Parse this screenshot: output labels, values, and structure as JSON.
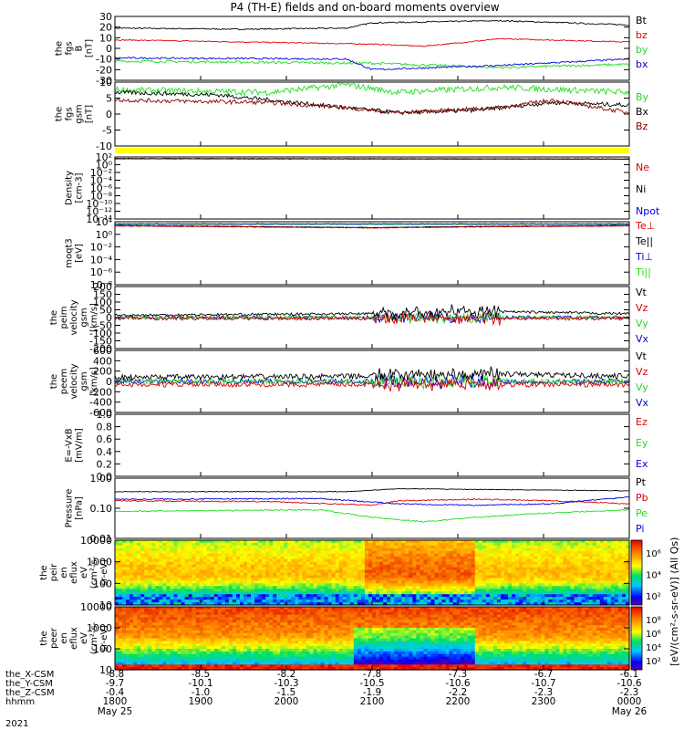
{
  "title": "P4 (TH-E) fields and on-board moments overview",
  "colors": {
    "black": "#000000",
    "red": "#dd0000",
    "blue": "#0000dd",
    "green": "#22dd22",
    "darkred": "#8b0000",
    "yellow": "#ffff00"
  },
  "chart_data": [
    {
      "type": "line",
      "ylabel": [
        "the",
        "fgs",
        "B",
        "[nT]"
      ],
      "yticks": [
        30,
        20,
        10,
        0,
        -10,
        -20,
        -30
      ],
      "ylim": [
        -30,
        30
      ],
      "legend": [
        {
          "name": "Bt",
          "color": "#000000"
        },
        {
          "name": "bz",
          "color": "#dd0000"
        },
        {
          "name": "by",
          "color": "#22dd22"
        },
        {
          "name": "bx",
          "color": "#0000dd"
        }
      ],
      "series": [
        {
          "name": "Bt",
          "color": "#000000",
          "base": 20,
          "noise": 0.6,
          "points": [
            [
              0,
              19
            ],
            [
              0.25,
              18
            ],
            [
              0.45,
              19
            ],
            [
              0.5,
              24
            ],
            [
              0.75,
              26
            ],
            [
              1,
              22
            ]
          ]
        },
        {
          "name": "bz",
          "color": "#dd0000",
          "base": 8,
          "noise": 0.5,
          "points": [
            [
              0,
              8
            ],
            [
              0.5,
              4
            ],
            [
              0.6,
              2
            ],
            [
              0.75,
              9
            ],
            [
              1,
              6
            ]
          ]
        },
        {
          "name": "by",
          "color": "#22dd22",
          "base": -12,
          "noise": 1.2,
          "points": [
            [
              0,
              -12
            ],
            [
              0.5,
              -14
            ],
            [
              0.75,
              -18
            ],
            [
              1,
              -15
            ]
          ]
        },
        {
          "name": "bx",
          "color": "#0000dd",
          "base": -10,
          "noise": 0.8,
          "points": [
            [
              0,
              -9
            ],
            [
              0.45,
              -10
            ],
            [
              0.5,
              -20
            ],
            [
              0.75,
              -16
            ],
            [
              1,
              -10
            ]
          ]
        }
      ]
    },
    {
      "type": "line",
      "ylabel": [
        "the",
        "fgs",
        "gsm",
        "[nT]"
      ],
      "yticks": [
        10,
        5,
        0,
        -5,
        -10
      ],
      "ylim": [
        -15,
        10
      ],
      "legend": [
        {
          "name": "By",
          "color": "#22dd22"
        },
        {
          "name": "Bx",
          "color": "#000000"
        },
        {
          "name": "Bz",
          "color": "#8b0000"
        }
      ],
      "series": [
        {
          "name": "By",
          "color": "#22dd22",
          "noise": 1.2,
          "points": [
            [
              0,
              7
            ],
            [
              0.3,
              6
            ],
            [
              0.45,
              9
            ],
            [
              0.55,
              6
            ],
            [
              0.75,
              8
            ],
            [
              1,
              6
            ]
          ]
        },
        {
          "name": "Bx",
          "color": "#000000",
          "noise": 0.8,
          "points": [
            [
              0,
              6
            ],
            [
              0.2,
              5
            ],
            [
              0.4,
              1
            ],
            [
              0.55,
              -2
            ],
            [
              0.7,
              -1
            ],
            [
              0.85,
              2
            ],
            [
              1,
              1
            ]
          ]
        },
        {
          "name": "Bz",
          "color": "#8b0000",
          "noise": 0.8,
          "points": [
            [
              0,
              3
            ],
            [
              0.3,
              2
            ],
            [
              0.45,
              0
            ],
            [
              0.55,
              -2
            ],
            [
              0.75,
              0
            ],
            [
              0.85,
              3
            ],
            [
              1,
              -2
            ]
          ]
        }
      ]
    },
    {
      "type": "line",
      "log": true,
      "ylabel": [
        "Density",
        "[cm-3]"
      ],
      "yticks": [
        "10²",
        "10⁰",
        "10⁻²",
        "10⁻⁴",
        "10⁻⁶",
        "10⁻⁸",
        "10⁻¹⁰",
        "10⁻¹²",
        "10⁻¹⁴"
      ],
      "ylim": [
        -14,
        2
      ],
      "legend": [
        {
          "name": "Ne",
          "color": "#dd0000"
        },
        {
          "name": "Ni",
          "color": "#000000"
        },
        {
          "name": "Npot",
          "color": "#0000dd"
        }
      ],
      "series": [
        {
          "name": "Ne",
          "color": "#dd0000",
          "noise": 0.05,
          "points": [
            [
              0,
              1.5
            ],
            [
              1,
              1.4
            ]
          ]
        },
        {
          "name": "Ni",
          "color": "#000000",
          "noise": 0.05,
          "points": [
            [
              0,
              1.6
            ],
            [
              1,
              1.5
            ]
          ]
        }
      ]
    },
    {
      "type": "line",
      "log": true,
      "ylabel": [
        "moqt3",
        "[eV]"
      ],
      "yticks": [
        "10⁴",
        "10⁰",
        "10⁻²",
        "10⁻⁴",
        "10⁻⁶",
        "10⁻⁸"
      ],
      "ylim": [
        -8,
        4
      ],
      "legend": [
        {
          "name": "Te⊥",
          "color": "#dd0000"
        },
        {
          "name": "Te||",
          "color": "#000000"
        },
        {
          "name": "Ti⊥",
          "color": "#0000dd"
        },
        {
          "name": "Ti||",
          "color": "#22dd22"
        }
      ],
      "series": [
        {
          "name": "Ti||",
          "color": "#22dd22",
          "noise": 0.05,
          "points": [
            [
              0,
              3.5
            ],
            [
              1,
              3.5
            ]
          ]
        },
        {
          "name": "Ti⊥",
          "color": "#0000dd",
          "noise": 0.05,
          "points": [
            [
              0,
              3.6
            ],
            [
              1,
              3.6
            ]
          ]
        },
        {
          "name": "Te||",
          "color": "#000000",
          "noise": 0.05,
          "points": [
            [
              0,
              3.3
            ],
            [
              0.5,
              2.9
            ],
            [
              0.7,
              3.1
            ],
            [
              1,
              3.3
            ]
          ]
        },
        {
          "name": "Te⊥",
          "color": "#dd0000",
          "noise": 0.05,
          "points": [
            [
              0,
              3.2
            ],
            [
              0.5,
              2.8
            ],
            [
              0.7,
              3.0
            ],
            [
              1,
              3.2
            ]
          ]
        }
      ]
    },
    {
      "type": "line",
      "ylabel": [
        "the",
        "peim",
        "velocity",
        "gsm",
        "[km/s]"
      ],
      "yticks": [
        200,
        150,
        100,
        50,
        0,
        -50,
        -100,
        -150,
        -200
      ],
      "ylim": [
        -200,
        200
      ],
      "legend": [
        {
          "name": "Vt",
          "color": "#000000"
        },
        {
          "name": "Vz",
          "color": "#dd0000"
        },
        {
          "name": "Vy",
          "color": "#22dd22"
        },
        {
          "name": "Vx",
          "color": "#0000dd"
        }
      ],
      "series": [
        {
          "name": "Vx",
          "color": "#0000dd",
          "noise": 12,
          "burst": 35,
          "points": [
            [
              0,
              0
            ],
            [
              1,
              0
            ]
          ]
        },
        {
          "name": "Vy",
          "color": "#22dd22",
          "noise": 12,
          "burst": 35,
          "points": [
            [
              0,
              0
            ],
            [
              1,
              0
            ]
          ]
        },
        {
          "name": "Vz",
          "color": "#dd0000",
          "noise": 12,
          "burst": 40,
          "points": [
            [
              0,
              -5
            ],
            [
              1,
              -5
            ]
          ]
        },
        {
          "name": "Vt",
          "color": "#000000",
          "noise": 8,
          "burst": 45,
          "points": [
            [
              0,
              15
            ],
            [
              0.5,
              25
            ],
            [
              0.7,
              40
            ],
            [
              1,
              25
            ]
          ]
        }
      ]
    },
    {
      "type": "line",
      "ylabel": [
        "the",
        "peem",
        "velocity",
        "gsm",
        "[km/s]"
      ],
      "yticks": [
        600,
        400,
        200,
        0,
        -200,
        -400,
        -600
      ],
      "ylim": [
        -600,
        600
      ],
      "legend": [
        {
          "name": "Vt",
          "color": "#000000"
        },
        {
          "name": "Vz",
          "color": "#dd0000"
        },
        {
          "name": "Vy",
          "color": "#22dd22"
        },
        {
          "name": "Vx",
          "color": "#0000dd"
        }
      ],
      "series": [
        {
          "name": "Vx",
          "color": "#0000dd",
          "noise": 50,
          "burst": 120,
          "points": [
            [
              0,
              0
            ],
            [
              1,
              0
            ]
          ]
        },
        {
          "name": "Vy",
          "color": "#22dd22",
          "noise": 50,
          "burst": 120,
          "points": [
            [
              0,
              0
            ],
            [
              1,
              0
            ]
          ]
        },
        {
          "name": "Vt",
          "color": "#000000",
          "noise": 50,
          "burst": 120,
          "points": [
            [
              0,
              80
            ],
            [
              0.5,
              100
            ],
            [
              0.7,
              150
            ],
            [
              1,
              100
            ]
          ]
        },
        {
          "name": "Vz",
          "color": "#dd0000",
          "noise": 50,
          "burst": 100,
          "points": [
            [
              0,
              -60
            ],
            [
              1,
              -60
            ]
          ]
        }
      ]
    },
    {
      "type": "line",
      "ylabel": [
        "E=-VxB",
        "[mV/m]"
      ],
      "yticks": [
        "1.0",
        "0.8",
        "0.6",
        "0.4",
        "0.2",
        "0.0"
      ],
      "ylim": [
        0,
        1
      ],
      "legend": [
        {
          "name": "Ez",
          "color": "#dd0000"
        },
        {
          "name": "Ey",
          "color": "#22dd22"
        },
        {
          "name": "Ex",
          "color": "#0000dd"
        }
      ],
      "series": []
    },
    {
      "type": "line",
      "log": true,
      "ylabel": [
        "Pressure",
        "[nPa]"
      ],
      "yticks": [
        "1.00",
        "0.10",
        "0.01"
      ],
      "ylim": [
        -2,
        0
      ],
      "legend": [
        {
          "name": "Pt",
          "color": "#000000"
        },
        {
          "name": "Pb",
          "color": "#dd0000"
        },
        {
          "name": "Pe",
          "color": "#22dd22"
        },
        {
          "name": "Pi",
          "color": "#0000dd"
        }
      ],
      "series": [
        {
          "name": "Pt",
          "color": "#000000",
          "noise": 0.01,
          "points": [
            [
              0,
              -0.45
            ],
            [
              0.45,
              -0.45
            ],
            [
              0.55,
              -0.35
            ],
            [
              0.75,
              -0.38
            ],
            [
              1,
              -0.42
            ]
          ]
        },
        {
          "name": "Pb",
          "color": "#dd0000",
          "noise": 0.02,
          "points": [
            [
              0,
              -0.75
            ],
            [
              0.3,
              -0.78
            ],
            [
              0.5,
              -0.9
            ],
            [
              0.55,
              -0.75
            ],
            [
              0.7,
              -0.7
            ],
            [
              0.85,
              -0.75
            ],
            [
              1,
              -0.85
            ]
          ]
        },
        {
          "name": "Pi",
          "color": "#0000dd",
          "noise": 0.02,
          "points": [
            [
              0,
              -0.7
            ],
            [
              0.4,
              -0.68
            ],
            [
              0.55,
              -0.85
            ],
            [
              0.7,
              -0.9
            ],
            [
              0.85,
              -0.85
            ],
            [
              1,
              -0.62
            ]
          ]
        },
        {
          "name": "Pe",
          "color": "#22dd22",
          "noise": 0.02,
          "points": [
            [
              0,
              -1.1
            ],
            [
              0.4,
              -1.05
            ],
            [
              0.5,
              -1.3
            ],
            [
              0.6,
              -1.45
            ],
            [
              0.7,
              -1.3
            ],
            [
              0.85,
              -1.15
            ],
            [
              1,
              -1.05
            ]
          ]
        }
      ]
    },
    {
      "type": "heatmap",
      "ylabel": [
        "the",
        "peir",
        "en",
        "eflux",
        "eV",
        "(cm²-s-",
        "sr-eV)"
      ],
      "yticks": [
        "10000",
        "1000",
        "100",
        "10"
      ],
      "ylim": [
        0.9,
        4.1
      ],
      "colorbar": {
        "ticks": [
          "10⁶",
          "10⁴",
          "10²"
        ],
        "range": [
          1.5,
          6.5
        ]
      }
    },
    {
      "type": "heatmap",
      "ylabel": [
        "the",
        "peer",
        "en",
        "eflux",
        "eV",
        "(cm²-s-",
        "sr-eV)"
      ],
      "yticks": [
        "10000",
        "1000",
        "100",
        "10"
      ],
      "ylim": [
        0.9,
        4.1
      ],
      "colorbar": {
        "ticks": [
          "10⁸",
          "10⁶",
          "10⁴",
          "10²"
        ],
        "range": [
          1.5,
          8.5
        ]
      }
    }
  ],
  "colorbar_label": "[eV/(cm²-s-sr-eV)] (All Qs)",
  "xaxis": {
    "row_labels": [
      "the_X-CSM",
      "the_Y-CSM",
      "the_Z-CSM",
      "hhmm",
      "2021"
    ],
    "columns": [
      {
        "x": [
          "-8.8",
          "-9.7",
          "-0.4",
          "1800",
          "May 25"
        ]
      },
      {
        "x": [
          "-8.5",
          "-10.1",
          "-1.0",
          "1900",
          ""
        ]
      },
      {
        "x": [
          "-8.2",
          "-10.3",
          "-1.5",
          "2000",
          ""
        ]
      },
      {
        "x": [
          "-7.8",
          "-10.5",
          "-1.9",
          "2100",
          ""
        ]
      },
      {
        "x": [
          "-7.3",
          "-10.6",
          "-2.2",
          "2200",
          ""
        ]
      },
      {
        "x": [
          "-6.7",
          "-10.7",
          "-2.3",
          "2300",
          ""
        ]
      },
      {
        "x": [
          "-6.1",
          "-10.6",
          "-2.3",
          "0000",
          "May 26"
        ]
      }
    ]
  }
}
